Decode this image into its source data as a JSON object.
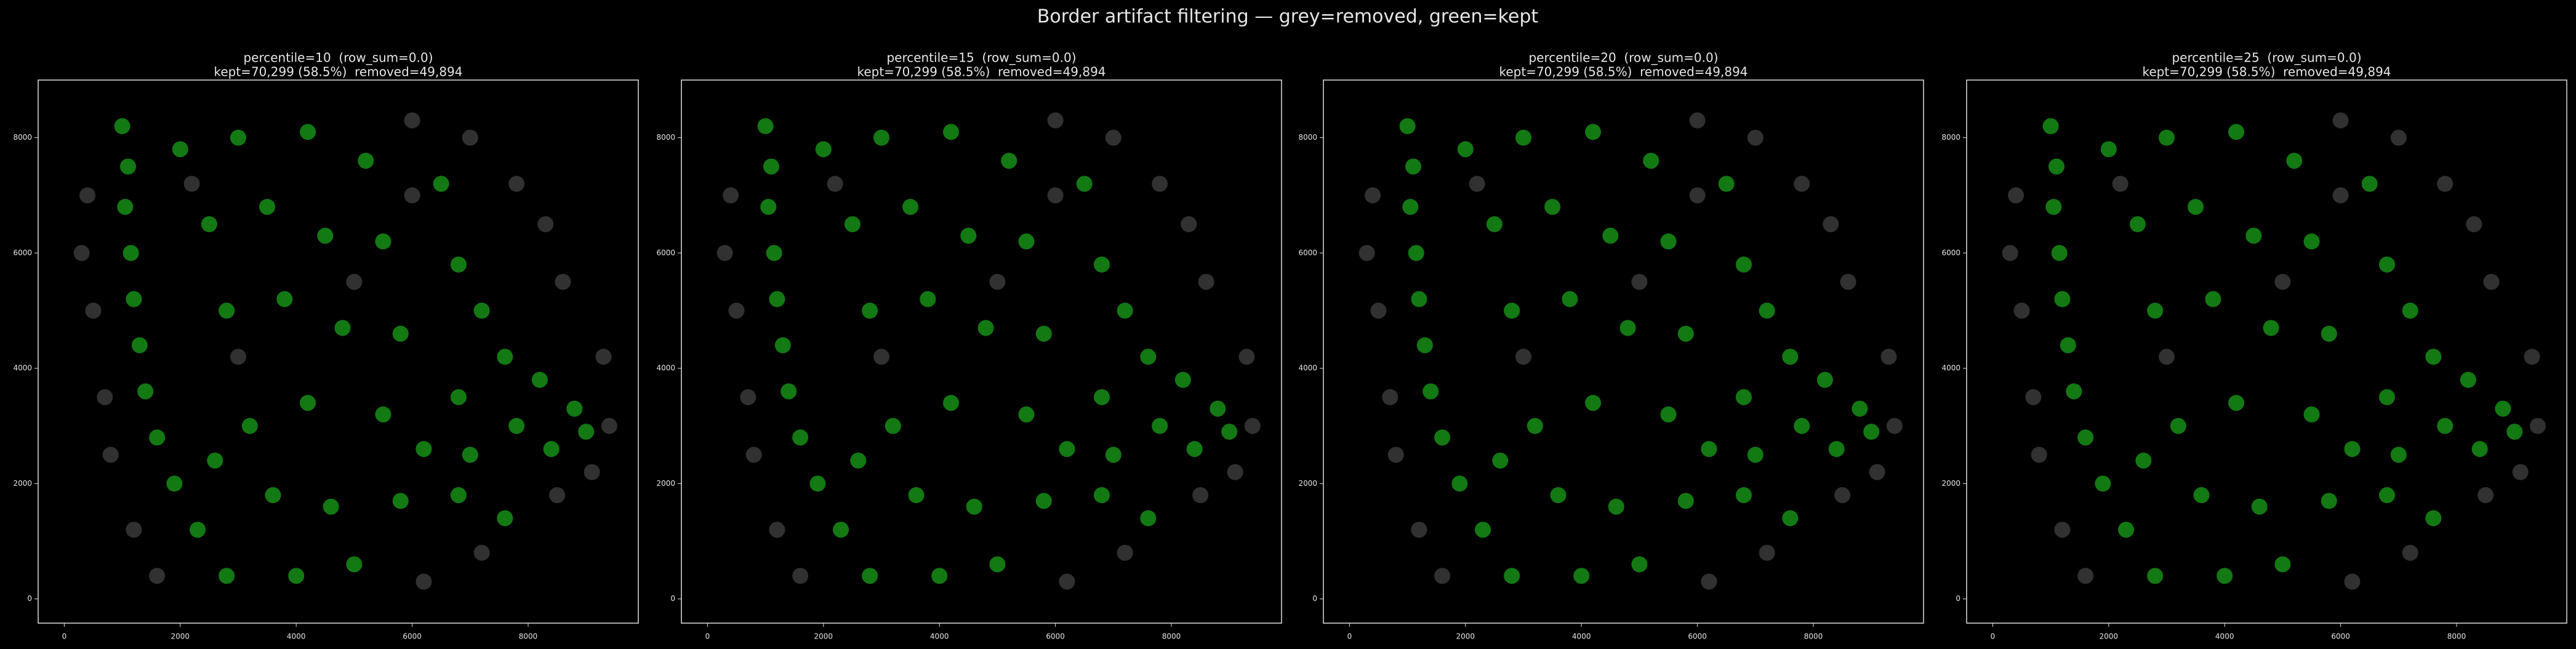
{
  "title": "Border artifact filtering — grey=removed, green=kept",
  "chart_data": [
    {
      "type": "scatter",
      "title": "percentile=10  (row_sum=0.0)",
      "subtitle": "kept=70,299 (58.5%)  removed=49,894",
      "xlim": [
        -450,
        9900
      ],
      "ylim": [
        -420,
        9000
      ],
      "xticks": [
        0,
        2000,
        4000,
        6000,
        8000
      ],
      "yticks": [
        0,
        2000,
        4000,
        6000,
        8000
      ],
      "series": [
        {
          "color": "#5a5a5a",
          "x": [
            300,
            500,
            400,
            700,
            800,
            1200,
            1600,
            6000,
            7000,
            7800,
            8300,
            8600,
            9300,
            9400,
            9100,
            8500,
            7200,
            6200,
            3000,
            5000,
            2200,
            6000
          ],
          "values": [
            6000,
            5000,
            7000,
            3500,
            2500,
            1200,
            400,
            8300,
            8000,
            7200,
            6500,
            5500,
            4200,
            3000,
            2200,
            1800,
            800,
            300,
            4200,
            5500,
            7200,
            7000
          ]
        },
        {
          "color": "#22dd22",
          "x": [
            1000,
            1100,
            1050,
            1150,
            1200,
            1300,
            1400,
            1600,
            1900,
            2300,
            2800,
            2000,
            3000,
            4200,
            5200,
            2500,
            3500,
            4500,
            5500,
            6500,
            6800,
            7200,
            2800,
            3800,
            4800,
            5800,
            7600,
            8200,
            8800,
            9000,
            8400,
            7800,
            6800,
            5500,
            4200,
            3200,
            3600,
            4600,
            5800,
            6800,
            7600,
            4000,
            5000,
            2600,
            7000,
            6200
          ],
          "values": [
            8200,
            7500,
            6800,
            6000,
            5200,
            4400,
            3600,
            2800,
            2000,
            1200,
            400,
            7800,
            8000,
            8100,
            7600,
            6500,
            6800,
            6300,
            6200,
            7200,
            5800,
            5000,
            5000,
            5200,
            4700,
            4600,
            4200,
            3800,
            3300,
            2900,
            2600,
            3000,
            3500,
            3200,
            3400,
            3000,
            1800,
            1600,
            1700,
            1800,
            1400,
            400,
            600,
            2400,
            2500,
            2600
          ]
        }
      ]
    },
    {
      "type": "scatter",
      "title": "percentile=15  (row_sum=0.0)",
      "subtitle": "kept=70,299 (58.5%)  removed=49,894",
      "xlim": [
        -450,
        9900
      ],
      "ylim": [
        -420,
        9000
      ],
      "xticks": [
        0,
        2000,
        4000,
        6000,
        8000
      ],
      "yticks": [
        0,
        2000,
        4000,
        6000,
        8000
      ],
      "series": [
        {
          "color": "#5a5a5a",
          "x": [
            300,
            500,
            400,
            700,
            800,
            1200,
            1600,
            6000,
            7000,
            7800,
            8300,
            8600,
            9300,
            9400,
            9100,
            8500,
            7200,
            6200,
            3000,
            5000,
            2200,
            6000
          ],
          "values": [
            6000,
            5000,
            7000,
            3500,
            2500,
            1200,
            400,
            8300,
            8000,
            7200,
            6500,
            5500,
            4200,
            3000,
            2200,
            1800,
            800,
            300,
            4200,
            5500,
            7200,
            7000
          ]
        },
        {
          "color": "#22dd22",
          "x": [
            1000,
            1100,
            1050,
            1150,
            1200,
            1300,
            1400,
            1600,
            1900,
            2300,
            2800,
            2000,
            3000,
            4200,
            5200,
            2500,
            3500,
            4500,
            5500,
            6500,
            6800,
            7200,
            2800,
            3800,
            4800,
            5800,
            7600,
            8200,
            8800,
            9000,
            8400,
            7800,
            6800,
            5500,
            4200,
            3200,
            3600,
            4600,
            5800,
            6800,
            7600,
            4000,
            5000,
            2600,
            7000,
            6200
          ],
          "values": [
            8200,
            7500,
            6800,
            6000,
            5200,
            4400,
            3600,
            2800,
            2000,
            1200,
            400,
            7800,
            8000,
            8100,
            7600,
            6500,
            6800,
            6300,
            6200,
            7200,
            5800,
            5000,
            5000,
            5200,
            4700,
            4600,
            4200,
            3800,
            3300,
            2900,
            2600,
            3000,
            3500,
            3200,
            3400,
            3000,
            1800,
            1600,
            1700,
            1800,
            1400,
            400,
            600,
            2400,
            2500,
            2600
          ]
        }
      ]
    },
    {
      "type": "scatter",
      "title": "percentile=20  (row_sum=0.0)",
      "subtitle": "kept=70,299 (58.5%)  removed=49,894",
      "xlim": [
        -450,
        9900
      ],
      "ylim": [
        -420,
        9000
      ],
      "xticks": [
        0,
        2000,
        4000,
        6000,
        8000
      ],
      "yticks": [
        0,
        2000,
        4000,
        6000,
        8000
      ],
      "series": [
        {
          "color": "#5a5a5a",
          "x": [
            300,
            500,
            400,
            700,
            800,
            1200,
            1600,
            6000,
            7000,
            7800,
            8300,
            8600,
            9300,
            9400,
            9100,
            8500,
            7200,
            6200,
            3000,
            5000,
            2200,
            6000
          ],
          "values": [
            6000,
            5000,
            7000,
            3500,
            2500,
            1200,
            400,
            8300,
            8000,
            7200,
            6500,
            5500,
            4200,
            3000,
            2200,
            1800,
            800,
            300,
            4200,
            5500,
            7200,
            7000
          ]
        },
        {
          "color": "#22dd22",
          "x": [
            1000,
            1100,
            1050,
            1150,
            1200,
            1300,
            1400,
            1600,
            1900,
            2300,
            2800,
            2000,
            3000,
            4200,
            5200,
            2500,
            3500,
            4500,
            5500,
            6500,
            6800,
            7200,
            2800,
            3800,
            4800,
            5800,
            7600,
            8200,
            8800,
            9000,
            8400,
            7800,
            6800,
            5500,
            4200,
            3200,
            3600,
            4600,
            5800,
            6800,
            7600,
            4000,
            5000,
            2600,
            7000,
            6200
          ],
          "values": [
            8200,
            7500,
            6800,
            6000,
            5200,
            4400,
            3600,
            2800,
            2000,
            1200,
            400,
            7800,
            8000,
            8100,
            7600,
            6500,
            6800,
            6300,
            6200,
            7200,
            5800,
            5000,
            5000,
            5200,
            4700,
            4600,
            4200,
            3800,
            3300,
            2900,
            2600,
            3000,
            3500,
            3200,
            3400,
            3000,
            1800,
            1600,
            1700,
            1800,
            1400,
            400,
            600,
            2400,
            2500,
            2600
          ]
        }
      ]
    },
    {
      "type": "scatter",
      "title": "percentile=25  (row_sum=0.0)",
      "subtitle": "kept=70,299 (58.5%)  removed=49,894",
      "xlim": [
        -450,
        9900
      ],
      "ylim": [
        -420,
        9000
      ],
      "xticks": [
        0,
        2000,
        4000,
        6000,
        8000
      ],
      "yticks": [
        0,
        2000,
        4000,
        6000,
        8000
      ],
      "series": [
        {
          "color": "#5a5a5a",
          "x": [
            300,
            500,
            400,
            700,
            800,
            1200,
            1600,
            6000,
            7000,
            7800,
            8300,
            8600,
            9300,
            9400,
            9100,
            8500,
            7200,
            6200,
            3000,
            5000,
            2200,
            6000
          ],
          "values": [
            6000,
            5000,
            7000,
            3500,
            2500,
            1200,
            400,
            8300,
            8000,
            7200,
            6500,
            5500,
            4200,
            3000,
            2200,
            1800,
            800,
            300,
            4200,
            5500,
            7200,
            7000
          ]
        },
        {
          "color": "#22dd22",
          "x": [
            1000,
            1100,
            1050,
            1150,
            1200,
            1300,
            1400,
            1600,
            1900,
            2300,
            2800,
            2000,
            3000,
            4200,
            5200,
            2500,
            3500,
            4500,
            5500,
            6500,
            6800,
            7200,
            2800,
            3800,
            4800,
            5800,
            7600,
            8200,
            8800,
            9000,
            8400,
            7800,
            6800,
            5500,
            4200,
            3200,
            3600,
            4600,
            5800,
            6800,
            7600,
            4000,
            5000,
            2600,
            7000,
            6200
          ],
          "values": [
            8200,
            7500,
            6800,
            6000,
            5200,
            4400,
            3600,
            2800,
            2000,
            1200,
            400,
            7800,
            8000,
            8100,
            7600,
            6500,
            6800,
            6300,
            6200,
            7200,
            5800,
            5000,
            5000,
            5200,
            4700,
            4600,
            4200,
            3800,
            3300,
            2900,
            2600,
            3000,
            3500,
            3200,
            3400,
            3000,
            1800,
            1600,
            1700,
            1800,
            1400,
            400,
            600,
            2400,
            2500,
            2600
          ]
        }
      ]
    }
  ]
}
